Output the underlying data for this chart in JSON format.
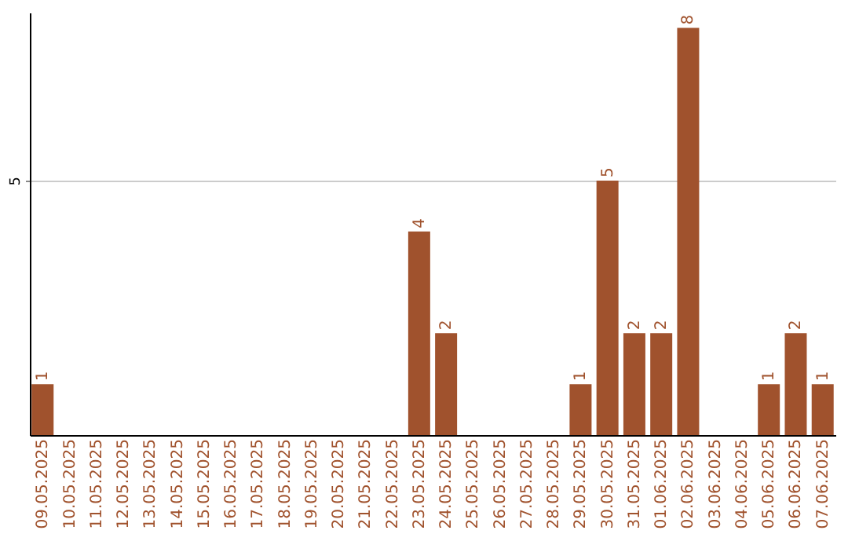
{
  "chart_data": {
    "type": "bar",
    "categories": [
      "09.05.2025",
      "10.05.2025",
      "11.05.2025",
      "12.05.2025",
      "13.05.2025",
      "14.05.2025",
      "15.05.2025",
      "16.05.2025",
      "17.05.2025",
      "18.05.2025",
      "19.05.2025",
      "20.05.2025",
      "21.05.2025",
      "22.05.2025",
      "23.05.2025",
      "24.05.2025",
      "25.05.2025",
      "26.05.2025",
      "27.05.2025",
      "28.05.2025",
      "29.05.2025",
      "30.05.2025",
      "31.05.2025",
      "01.06.2025",
      "02.06.2025",
      "03.06.2025",
      "04.06.2025",
      "05.06.2025",
      "06.06.2025",
      "07.06.2025"
    ],
    "values": [
      1,
      0,
      0,
      0,
      0,
      0,
      0,
      0,
      0,
      0,
      0,
      0,
      0,
      0,
      4,
      2,
      0,
      0,
      0,
      0,
      1,
      5,
      2,
      2,
      8,
      0,
      0,
      1,
      2,
      1
    ],
    "value_labels": [
      "1",
      null,
      null,
      null,
      null,
      null,
      null,
      null,
      null,
      null,
      null,
      null,
      null,
      null,
      "4",
      "2",
      null,
      null,
      null,
      null,
      "1",
      "5",
      "2",
      "2",
      "8",
      null,
      null,
      "1",
      "2",
      "1"
    ],
    "color": "#a0522d",
    "ylim": [
      0,
      8.3
    ],
    "yticks": [
      5
    ],
    "grid": "y"
  }
}
